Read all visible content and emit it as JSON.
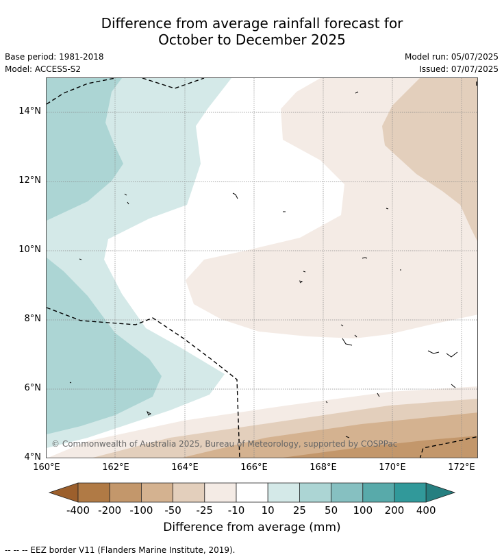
{
  "title_line1": "Difference from average rainfall forecast for",
  "title_line2": "October to December 2025",
  "base_period": "Base period: 1981-2018",
  "model": "Model: ACCESS-S2",
  "model_run": "Model run: 05/07/2025",
  "issued": "Issued: 07/07/2025",
  "copyright": "© Commonwealth of Australia 2025, Bureau of Meteorology, supported by COSPPac",
  "lat_labels": [
    "14°N",
    "12°N",
    "10°N",
    "8°N",
    "6°N",
    "4°N"
  ],
  "lon_labels": [
    "160°E",
    "162°E",
    "164°E",
    "166°E",
    "168°E",
    "170°E",
    "172°E"
  ],
  "colorbar": {
    "title": "Difference from average (mm)",
    "labels": [
      "-400",
      "-200",
      "-100",
      "-50",
      "-25",
      "-10",
      "10",
      "25",
      "50",
      "100",
      "200",
      "400"
    ],
    "colors": [
      "#9c5f2c",
      "#b07a45",
      "#c3976b",
      "#d4b290",
      "#e3cfbc",
      "#f4ebe5",
      "#ffffff",
      "#d4e9e8",
      "#acd5d4",
      "#86c0c1",
      "#58aaaa",
      "#31999a",
      "#267f80"
    ]
  },
  "footnote": "--  --  -- EEZ border V11 (Flanders Marine Institute, 2019)."
}
